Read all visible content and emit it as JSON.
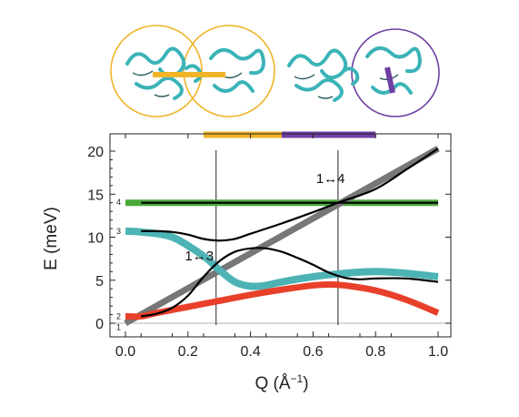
{
  "chart_data": {
    "type": "line",
    "xlabel": "Q (Å",
    "xlabel_sup": "−1",
    "xlabel_close": ")",
    "ylabel": "E (meV)",
    "xlim": [
      0.0,
      1.0
    ],
    "ylim": [
      -1.0,
      21.0
    ],
    "xticks": [
      "0.0",
      "0.2",
      "0.4",
      "0.6",
      "0.8",
      "1.0"
    ],
    "yticks": [
      "0",
      "5",
      "10",
      "15",
      "20"
    ],
    "level_labels": [
      {
        "text": "1",
        "y": -0.5
      },
      {
        "text": "2",
        "y": 0.8
      },
      {
        "text": "3",
        "y": 10.7
      },
      {
        "text": "4",
        "y": 14.1
      }
    ],
    "annotations": [
      {
        "text": "1↔4",
        "x": 0.61,
        "y": 16.3
      },
      {
        "text": "1↔3",
        "x": 0.19,
        "y": 7.3
      }
    ],
    "vertical_lines": [
      0.29,
      0.68
    ],
    "top_bars": [
      {
        "x0": 0.25,
        "x1": 0.5,
        "color": "#f0b429"
      },
      {
        "x0": 0.5,
        "x1": 0.8,
        "color": "#6f3fa2"
      }
    ],
    "colors": {
      "gray": "#777777",
      "green": "#4aa83a",
      "teal": "#4db3b5",
      "red": "#e8402a",
      "black": "#000000",
      "yellow": "#f0b429",
      "purple": "#6f3fa2",
      "protein": "#3bb3b8"
    },
    "series": [
      {
        "color": "green",
        "x": [
          0.0,
          1.0
        ],
        "y": [
          14.0,
          14.0
        ]
      },
      {
        "color": "gray",
        "x": [
          0.0,
          1.0
        ],
        "y": [
          0.0,
          20.3
        ]
      },
      {
        "color": "teal",
        "x": [
          0.0,
          0.05,
          0.15,
          0.25,
          0.3,
          0.35,
          0.4,
          0.45,
          0.5,
          0.6,
          0.7,
          0.8,
          0.9,
          1.0
        ],
        "y": [
          10.7,
          10.6,
          10.0,
          7.8,
          6.2,
          4.8,
          4.3,
          4.4,
          4.8,
          5.4,
          5.8,
          6.0,
          5.8,
          5.4
        ]
      },
      {
        "color": "red",
        "x": [
          0.0,
          0.05,
          0.1,
          0.2,
          0.3,
          0.4,
          0.5,
          0.6,
          0.65,
          0.7,
          0.8,
          0.9,
          1.0
        ],
        "y": [
          0.8,
          0.8,
          1.2,
          1.9,
          2.6,
          3.3,
          3.9,
          4.4,
          4.5,
          4.4,
          3.8,
          2.7,
          1.2
        ]
      },
      {
        "color": "black",
        "x": [
          0.05,
          1.0
        ],
        "y": [
          14.0,
          14.0
        ]
      },
      {
        "color": "black",
        "x": [
          0.05,
          0.1,
          0.15,
          0.2,
          0.25,
          0.3,
          0.35,
          0.4,
          0.5,
          0.6,
          0.68,
          0.8,
          0.9,
          1.0
        ],
        "y": [
          10.7,
          10.7,
          10.6,
          10.3,
          9.8,
          9.6,
          9.8,
          10.4,
          11.6,
          12.9,
          14.0,
          15.6,
          17.9,
          20.3
        ]
      },
      {
        "color": "black",
        "x": [
          0.05,
          0.1,
          0.15,
          0.2,
          0.25,
          0.3,
          0.35,
          0.4,
          0.45,
          0.5,
          0.55,
          0.6,
          0.65,
          0.7,
          0.75,
          0.8,
          0.9,
          1.0
        ],
        "y": [
          0.8,
          1.1,
          1.8,
          3.2,
          5.4,
          7.2,
          8.3,
          8.7,
          8.7,
          8.3,
          7.6,
          6.8,
          5.9,
          5.3,
          5.1,
          5.2,
          5.2,
          4.8
        ]
      }
    ]
  }
}
